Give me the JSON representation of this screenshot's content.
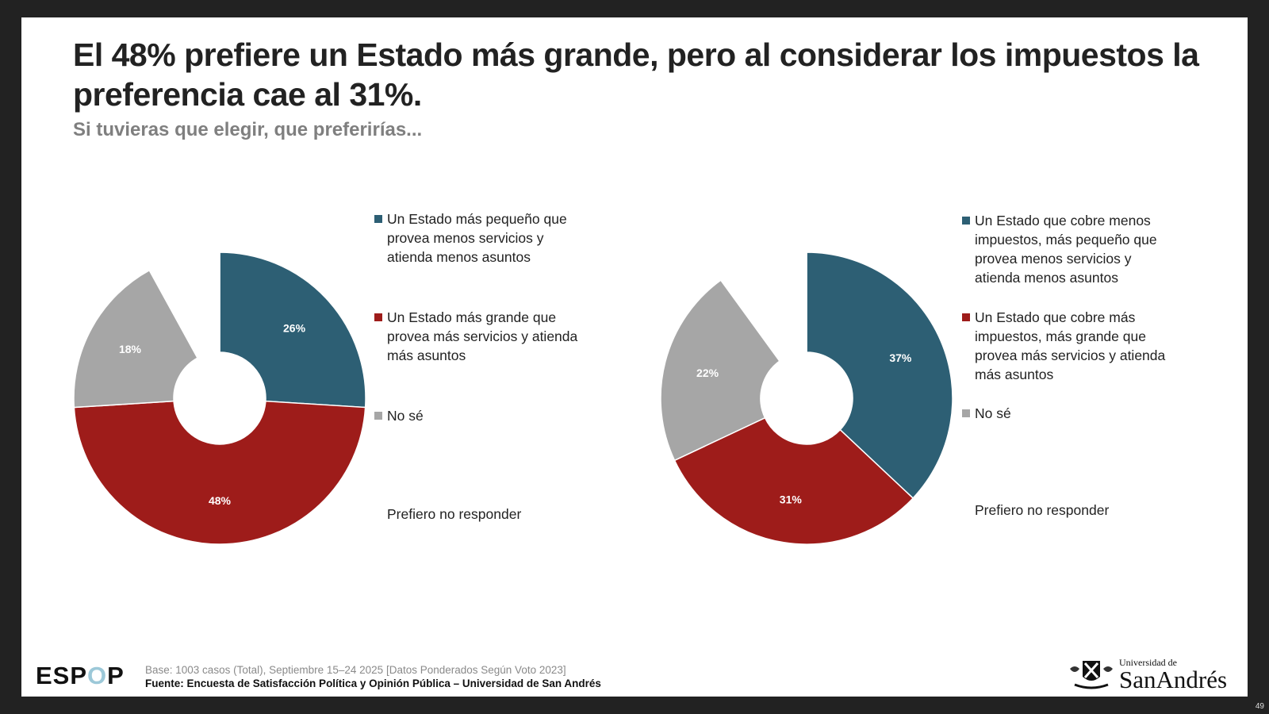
{
  "header": {
    "title": "El 48% prefiere un Estado más grande, pero al considerar los impuestos la preferencia cae al 31%.",
    "subtitle": "Si tuvieras que elegir, que preferirías..."
  },
  "colors": {
    "blue": "#2d5f74",
    "red": "#9e1c1a",
    "gray": "#a6a6a6",
    "none": "#ffffff"
  },
  "chart_data": [
    {
      "type": "pie",
      "donut": true,
      "title": "",
      "categories": [
        "Un Estado más pequeño que provea menos servicios y atienda menos asuntos",
        "Un Estado más grande que provea más servicios y atienda más asuntos",
        "No sé",
        "Prefiero no responder"
      ],
      "values": [
        26,
        48,
        18,
        8
      ],
      "labels": [
        "26%",
        "48%",
        "18%",
        ""
      ],
      "colors": [
        "#2d5f74",
        "#9e1c1a",
        "#a6a6a6",
        "#ffffff"
      ],
      "legend": "right"
    },
    {
      "type": "pie",
      "donut": true,
      "title": "",
      "categories": [
        "Un Estado que cobre menos impuestos, más pequeño que provea menos servicios y atienda menos asuntos",
        "Un Estado que cobre más impuestos, más grande que provea más servicios y atienda más asuntos",
        "No sé",
        "Prefiero no responder"
      ],
      "values": [
        37,
        31,
        22,
        10
      ],
      "labels": [
        "37%",
        "31%",
        "22%",
        ""
      ],
      "colors": [
        "#2d5f74",
        "#9e1c1a",
        "#a6a6a6",
        "#ffffff"
      ],
      "legend": "right"
    }
  ],
  "legend1": [
    {
      "text": "Un Estado más pequeño que provea menos servicios y atienda menos asuntos"
    },
    {
      "text": "Un Estado más grande que provea más servicios y atienda más asuntos"
    },
    {
      "text": "No sé"
    },
    {
      "text": "Prefiero no responder"
    }
  ],
  "legend2": [
    {
      "text": "Un Estado que cobre menos impuestos, más pequeño que provea menos servicios y atienda menos asuntos"
    },
    {
      "text": "Un Estado que cobre más impuestos, más grande que provea más servicios y atienda más asuntos"
    },
    {
      "text": "No sé"
    },
    {
      "text": "Prefiero no responder"
    }
  ],
  "footer": {
    "logo_pre": "ESP",
    "logo_o": "O",
    "logo_post": "P",
    "base": "Base: 1003 casos (Total), Septiembre 15–24 2025 [Datos Ponderados Según Voto 2023]",
    "source": "Fuente: Encuesta de Satisfacción Política y Opinión Pública – Universidad de San Andrés",
    "university_top": "Universidad de",
    "university_bottom": "SanAndrés",
    "page_number": "49"
  }
}
